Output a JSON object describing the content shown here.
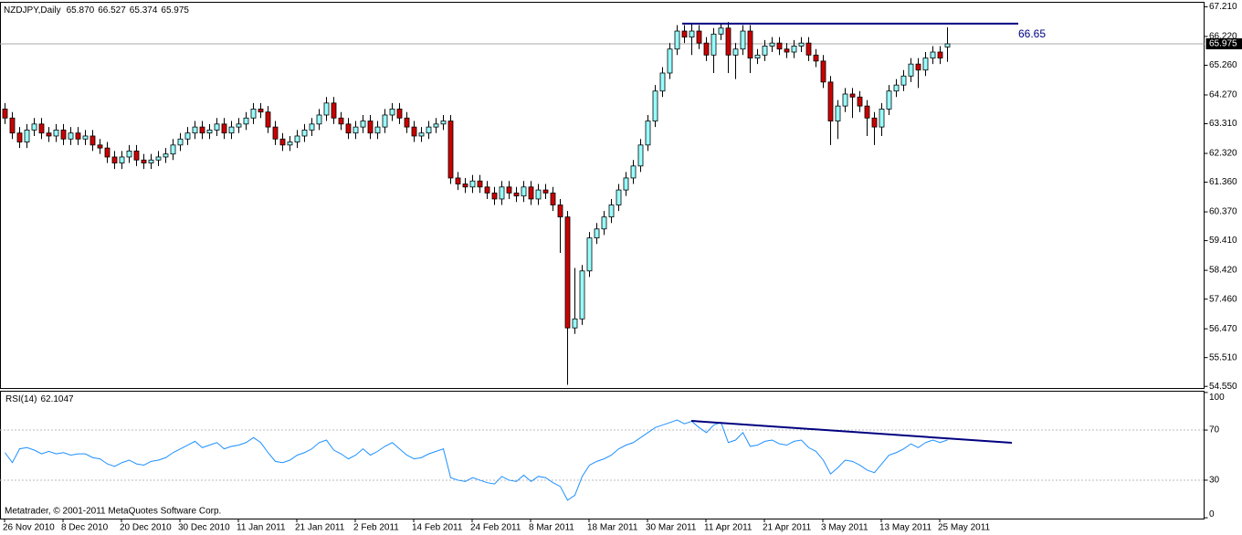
{
  "chart_data": {
    "type": "candlestick",
    "title": "NZDJPY,Daily",
    "header_values": [
      {
        "value": 65.87,
        "label": "65.870"
      },
      66.527,
      65.374,
      65.975
    ],
    "categories": [
      "26 Nov 2010",
      null,
      null,
      null,
      null,
      null,
      null,
      null,
      "8 Dec 2010",
      null,
      null,
      null,
      null,
      null,
      null,
      null,
      "20 Dec 2010",
      null,
      null,
      null,
      null,
      null,
      null,
      null,
      "30 Dec 2010",
      null,
      null,
      null,
      null,
      null,
      null,
      null,
      "11 Jan 2011",
      null,
      null,
      null,
      null,
      null,
      null,
      null,
      "21 Jan 2011",
      null,
      null,
      null,
      null,
      null,
      null,
      null,
      "2 Feb 2011",
      null,
      null,
      null,
      null,
      null,
      null,
      null,
      "14 Feb 2011",
      null,
      null,
      null,
      null,
      null,
      null,
      null,
      "24 Feb 2011",
      null,
      null,
      null,
      null,
      null,
      null,
      null,
      "8 Mar 2011",
      null,
      null,
      null,
      null,
      null,
      null,
      null,
      "18 Mar 2011",
      null,
      null,
      null,
      null,
      null,
      null,
      null,
      "30 Mar 2011",
      null,
      null,
      null,
      null,
      null,
      null,
      null,
      "11 Apr 2011",
      null,
      null,
      null,
      null,
      null,
      null,
      null,
      "21 Apr 2011",
      null,
      null,
      null,
      null,
      null,
      null,
      null,
      "3 May 2011",
      null,
      null,
      null,
      null,
      null,
      null,
      null,
      "13 May 2011",
      null,
      null,
      null,
      null,
      null,
      null,
      null,
      "25 May 2011",
      null
    ],
    "open": [
      63.8,
      63.5,
      63.0,
      62.7,
      63.1,
      63.3,
      63.0,
      62.9,
      63.1,
      62.8,
      63.0,
      62.8,
      62.9,
      62.6,
      62.5,
      62.2,
      62.0,
      62.2,
      62.4,
      62.1,
      62.0,
      62.1,
      62.2,
      62.3,
      62.6,
      62.8,
      63.0,
      63.2,
      63.0,
      63.1,
      63.3,
      63.0,
      63.2,
      63.3,
      63.5,
      63.8,
      63.7,
      63.2,
      62.8,
      62.6,
      62.7,
      62.9,
      63.1,
      63.3,
      63.6,
      64.0,
      63.5,
      63.3,
      63.0,
      63.2,
      63.4,
      63.0,
      63.2,
      63.6,
      63.8,
      63.5,
      63.2,
      62.9,
      63.0,
      63.2,
      63.3,
      63.4,
      61.5,
      61.3,
      61.2,
      61.4,
      61.2,
      61.0,
      60.8,
      61.2,
      61.0,
      60.9,
      61.2,
      60.8,
      61.1,
      61.0,
      60.6,
      60.2,
      56.5,
      56.8,
      58.4,
      59.5,
      59.8,
      60.2,
      60.6,
      61.1,
      61.5,
      61.9,
      62.6,
      63.4,
      64.4,
      65.0,
      65.8,
      66.4,
      66.2,
      66.4,
      66.0,
      65.6,
      66.3,
      66.5,
      65.6,
      65.8,
      66.4,
      65.5,
      65.6,
      65.9,
      66.0,
      65.8,
      65.7,
      65.9,
      66.0,
      65.6,
      65.4,
      64.7,
      63.4,
      63.9,
      64.3,
      64.2,
      63.9,
      63.5,
      63.2,
      63.8,
      64.4,
      64.6,
      64.9,
      65.3,
      65.1,
      65.5,
      65.7,
      65.87
    ],
    "high": [
      64.0,
      63.7,
      63.2,
      63.3,
      63.5,
      63.5,
      63.2,
      63.3,
      63.3,
      63.2,
      63.2,
      63.1,
      63.1,
      62.8,
      62.7,
      62.4,
      62.4,
      62.6,
      62.6,
      62.3,
      62.3,
      62.4,
      62.5,
      62.8,
      63.0,
      63.2,
      63.4,
      63.4,
      63.3,
      63.5,
      63.5,
      63.4,
      63.5,
      63.7,
      64.0,
      64.0,
      63.9,
      63.4,
      63.0,
      62.9,
      63.1,
      63.3,
      63.5,
      63.8,
      64.2,
      64.2,
      63.7,
      63.5,
      63.4,
      63.6,
      63.6,
      63.4,
      63.8,
      64.0,
      64.0,
      63.7,
      63.4,
      63.2,
      63.4,
      63.5,
      63.6,
      63.6,
      61.7,
      61.5,
      61.6,
      61.6,
      61.4,
      61.2,
      61.4,
      61.4,
      61.2,
      61.4,
      61.4,
      61.3,
      61.3,
      61.2,
      60.8,
      60.4,
      58.5,
      58.6,
      59.7,
      60.0,
      60.4,
      60.8,
      61.3,
      61.7,
      62.1,
      62.8,
      63.6,
      64.6,
      65.2,
      66.0,
      66.6,
      66.6,
      66.65,
      66.6,
      66.2,
      66.5,
      66.65,
      66.7,
      66.0,
      66.6,
      66.6,
      65.8,
      66.1,
      66.2,
      66.2,
      66.0,
      66.1,
      66.2,
      66.2,
      65.8,
      65.6,
      64.9,
      64.1,
      64.5,
      64.5,
      64.4,
      64.1,
      63.7,
      64.0,
      64.6,
      64.8,
      65.1,
      65.5,
      65.5,
      65.7,
      65.9,
      65.9,
      66.527
    ],
    "low": [
      63.3,
      62.8,
      62.5,
      62.5,
      62.9,
      62.8,
      62.7,
      62.7,
      62.6,
      62.6,
      62.6,
      62.6,
      62.4,
      62.3,
      62.0,
      61.8,
      61.8,
      62.0,
      61.9,
      61.8,
      61.8,
      61.9,
      62.0,
      62.1,
      62.4,
      62.6,
      62.8,
      62.8,
      62.8,
      62.9,
      62.8,
      62.8,
      63.0,
      63.1,
      63.3,
      63.5,
      63.0,
      62.6,
      62.4,
      62.4,
      62.5,
      62.7,
      62.9,
      63.1,
      63.4,
      63.3,
      63.1,
      62.8,
      62.8,
      63.0,
      62.8,
      62.8,
      63.0,
      63.4,
      63.3,
      63.0,
      62.7,
      62.7,
      62.8,
      63.0,
      63.1,
      61.3,
      61.1,
      61.0,
      61.0,
      61.0,
      60.8,
      60.6,
      60.6,
      60.8,
      60.7,
      60.7,
      60.6,
      60.6,
      60.8,
      60.4,
      59.0,
      54.6,
      56.3,
      56.6,
      58.2,
      59.3,
      59.6,
      60.0,
      60.4,
      60.9,
      61.3,
      61.7,
      62.4,
      63.2,
      64.2,
      64.8,
      65.6,
      66.0,
      65.6,
      65.8,
      65.4,
      65.0,
      66.1,
      65.0,
      64.8,
      65.6,
      65.0,
      65.3,
      65.4,
      65.7,
      65.6,
      65.5,
      65.5,
      65.7,
      65.4,
      65.2,
      64.5,
      62.6,
      62.8,
      63.7,
      63.5,
      63.7,
      62.9,
      62.6,
      62.9,
      63.6,
      64.2,
      64.4,
      64.7,
      64.5,
      64.9,
      65.3,
      65.3,
      65.374
    ],
    "close": [
      63.5,
      63.0,
      62.7,
      63.1,
      63.3,
      63.0,
      62.9,
      63.1,
      62.8,
      63.0,
      62.8,
      62.9,
      62.6,
      62.5,
      62.2,
      62.0,
      62.2,
      62.4,
      62.1,
      62.0,
      62.1,
      62.2,
      62.3,
      62.6,
      62.8,
      63.0,
      63.2,
      63.0,
      63.1,
      63.3,
      63.0,
      63.2,
      63.3,
      63.5,
      63.8,
      63.7,
      63.2,
      62.8,
      62.6,
      62.7,
      62.9,
      63.1,
      63.3,
      63.6,
      64.0,
      63.5,
      63.3,
      63.0,
      63.2,
      63.4,
      63.0,
      63.2,
      63.6,
      63.8,
      63.5,
      63.2,
      62.9,
      63.0,
      63.2,
      63.3,
      63.4,
      61.5,
      61.3,
      61.2,
      61.4,
      61.2,
      61.0,
      60.8,
      61.2,
      61.0,
      60.9,
      61.2,
      60.8,
      61.1,
      61.0,
      60.6,
      60.2,
      56.5,
      56.8,
      58.4,
      59.5,
      59.8,
      60.2,
      60.6,
      61.1,
      61.5,
      61.9,
      62.6,
      63.4,
      64.4,
      65.0,
      65.8,
      66.4,
      66.2,
      66.4,
      66.0,
      65.6,
      66.3,
      66.5,
      65.6,
      65.8,
      66.4,
      65.5,
      65.6,
      65.9,
      66.0,
      65.8,
      65.7,
      65.9,
      66.0,
      65.6,
      65.4,
      64.7,
      63.4,
      63.9,
      64.3,
      64.2,
      63.9,
      63.5,
      63.2,
      63.8,
      64.4,
      64.6,
      64.9,
      65.3,
      65.1,
      65.5,
      65.7,
      65.5,
      65.975
    ],
    "bull_color": "#99ffff",
    "bear_color": "#cc0000",
    "ylim": [
      54.48,
      67.36
    ],
    "yticks": [
      {
        "value": 67.21,
        "label": "67.210"
      },
      {
        "value": 66.22,
        "label": "66.220"
      },
      {
        "value": 65.26,
        "label": "65.260"
      },
      {
        "value": 64.27,
        "label": "64.270"
      },
      {
        "value": 63.31,
        "label": "63.310"
      },
      {
        "value": 62.32,
        "label": "62.320"
      },
      {
        "value": 61.36,
        "label": "61.360"
      },
      {
        "value": 60.37,
        "label": "60.370"
      },
      {
        "value": 59.41,
        "label": "59.410"
      },
      {
        "value": 58.42,
        "label": "58.420"
      },
      {
        "value": 57.46,
        "label": "57.460"
      },
      {
        "value": 56.47,
        "label": "56.470"
      },
      {
        "value": 55.51,
        "label": "55.510"
      },
      {
        "value": 54.55,
        "label": "54.550"
      }
    ],
    "resistance_level": 66.65,
    "trendline_color": "#000080",
    "grid": false,
    "rsi": {
      "title": "RSI(14)",
      "color": "#1e90ff",
      "values": [
        52,
        44,
        55,
        56,
        54,
        51,
        53,
        51,
        52,
        50,
        51,
        51,
        48,
        47,
        43,
        41,
        44,
        46,
        43,
        42,
        45,
        46,
        48,
        52,
        55,
        58,
        61,
        56,
        58,
        60,
        55,
        57,
        58,
        60,
        64,
        60,
        52,
        45,
        44,
        46,
        50,
        52,
        55,
        60,
        62,
        54,
        51,
        47,
        50,
        55,
        50,
        53,
        57,
        60,
        55,
        50,
        47,
        48,
        51,
        53,
        55,
        32,
        30,
        29,
        32,
        30,
        28,
        27,
        33,
        30,
        29,
        34,
        29,
        33,
        32,
        28,
        25,
        14,
        18,
        33,
        42,
        45,
        47,
        50,
        55,
        58,
        60,
        64,
        68,
        72,
        74,
        76,
        78,
        75,
        77,
        72,
        68,
        74,
        76,
        60,
        62,
        68,
        57,
        58,
        61,
        62,
        59,
        58,
        61,
        62,
        56,
        53,
        46,
        35,
        40,
        46,
        45,
        42,
        38,
        36,
        43,
        50,
        52,
        55,
        59,
        56,
        60,
        62,
        60,
        62.1047
      ],
      "ylim": [
        -1,
        101
      ],
      "yticks": [
        100,
        70,
        30,
        0
      ],
      "levels": [
        70,
        30
      ]
    },
    "copyright": "Metatrader, © 2001-2011 MetaQuotes Software Corp."
  }
}
